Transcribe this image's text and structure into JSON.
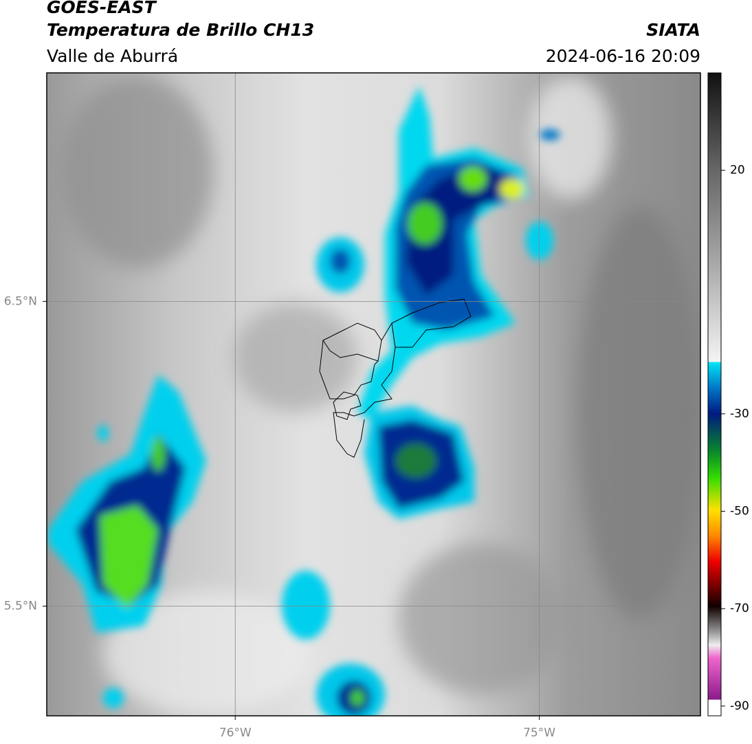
{
  "chart_data": {
    "type": "map",
    "title": "GOES-EAST",
    "subtitle": "Temperatura de Brillo CH13",
    "region": "Valle de Aburrá",
    "source": "SIATA",
    "timestamp": "2024-06-16 20:09",
    "xlim": [
      -76.62,
      -74.47
    ],
    "ylim": [
      5.14,
      7.25
    ],
    "xticks": [
      {
        "value": -76,
        "label": "76°W"
      },
      {
        "value": -75,
        "label": "75°W"
      }
    ],
    "yticks": [
      {
        "value": 6.5,
        "label": "6.5°N"
      },
      {
        "value": 5.5,
        "label": "5.5°N"
      }
    ],
    "grid": true,
    "colorbar": {
      "lim": [
        -92,
        40
      ],
      "ticks": [
        20,
        -30,
        -50,
        -70,
        -90
      ]
    }
  }
}
